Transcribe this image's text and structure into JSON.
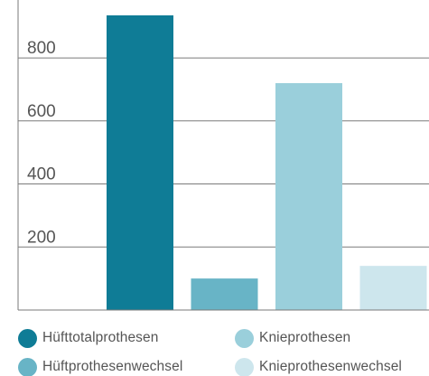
{
  "chart_data": {
    "type": "bar",
    "categories": [
      "Hüfttotalprothesen",
      "Hüftprothesenwechsel",
      "Knieprothesen",
      "Knieprothesenwechsel"
    ],
    "values": [
      935,
      100,
      720,
      140
    ],
    "ylim": [
      0,
      935
    ],
    "yticks": [
      {
        "value": 200,
        "label": "200"
      },
      {
        "value": 400,
        "label": "400"
      },
      {
        "value": 600,
        "label": "600"
      },
      {
        "value": 800,
        "label": "800"
      }
    ],
    "grid": true,
    "legend_position": "bottom",
    "colors": [
      "#0f7c96",
      "#68b4c6",
      "#9acfdb",
      "#cde6ed"
    ],
    "legend": [
      {
        "label": "Hüfttotalprothesen",
        "color": "#0f7c96"
      },
      {
        "label": "Knieprothesen",
        "color": "#9acfdb"
      },
      {
        "label": "Hüftprothesenwechsel",
        "color": "#68b4c6"
      },
      {
        "label": "Knieprothesenwechsel",
        "color": "#cde6ed"
      }
    ]
  }
}
